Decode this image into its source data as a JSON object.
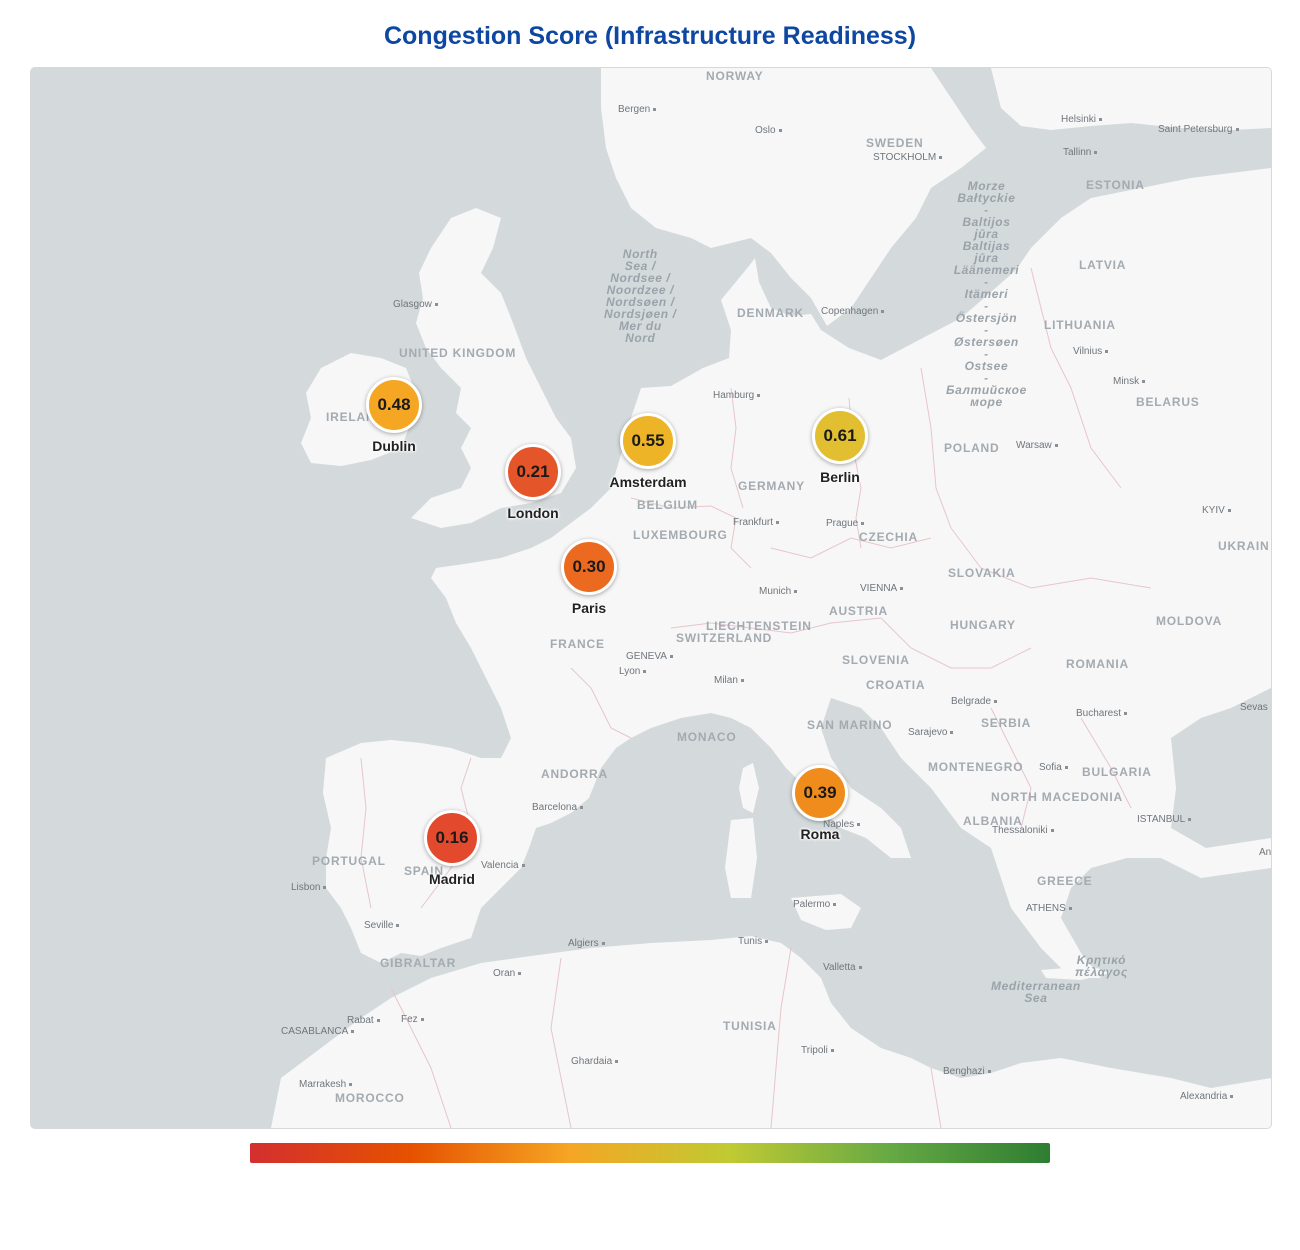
{
  "title": "Congestion Score (Infrastructure Readiness)",
  "colors": {
    "water": "#d4dadc",
    "land": "#f7f7f7",
    "border": "#e8c5cb",
    "title": "#0d47a1",
    "scale": [
      "#d32f2f",
      "#e65100",
      "#f5a623",
      "#c0ca33",
      "#66a944",
      "#2e7d32"
    ]
  },
  "countries": [
    {
      "name": "NORWAY"
    },
    {
      "name": "SWEDEN"
    },
    {
      "name": "ESTONIA"
    },
    {
      "name": "LATVIA"
    },
    {
      "name": "LITHUANIA"
    },
    {
      "name": "DENMARK"
    },
    {
      "name": "UNITED KINGDOM"
    },
    {
      "name": "IRELAND"
    },
    {
      "name": "BELARUS"
    },
    {
      "name": "POLAND"
    },
    {
      "name": "GERMANY"
    },
    {
      "name": "BELGIUM"
    },
    {
      "name": "LUXEMBOURG"
    },
    {
      "name": "CZECHIA"
    },
    {
      "name": "UKRAIN"
    },
    {
      "name": "SLOVAKIA"
    },
    {
      "name": "AUSTRIA"
    },
    {
      "name": "LIECHTENSTEIN"
    },
    {
      "name": "SWITZERLAND"
    },
    {
      "name": "HUNGARY"
    },
    {
      "name": "MOLDOVA"
    },
    {
      "name": "FRANCE"
    },
    {
      "name": "SLOVENIA"
    },
    {
      "name": "CROATIA"
    },
    {
      "name": "ROMANIA"
    },
    {
      "name": "SERBIA"
    },
    {
      "name": "MONACO"
    },
    {
      "name": "SAN MARINO"
    },
    {
      "name": "ANDORRA"
    },
    {
      "name": "MONTENEGRO"
    },
    {
      "name": "BULGARIA"
    },
    {
      "name": "NORTH MACEDONIA"
    },
    {
      "name": "ALBANIA"
    },
    {
      "name": "PORTUGAL"
    },
    {
      "name": "SPAIN"
    },
    {
      "name": "GREECE"
    },
    {
      "name": "GIBRALTAR"
    },
    {
      "name": "TUNISIA"
    },
    {
      "name": "MOROCCO"
    }
  ],
  "cities": [
    {
      "name": "Bergen"
    },
    {
      "name": "Oslo"
    },
    {
      "name": "STOCKHOLM"
    },
    {
      "name": "Helsinki"
    },
    {
      "name": "Saint Petersburg"
    },
    {
      "name": "Tallinn"
    },
    {
      "name": "Glasgow"
    },
    {
      "name": "Copenhagen"
    },
    {
      "name": "Vilnius"
    },
    {
      "name": "Minsk"
    },
    {
      "name": "Hamburg"
    },
    {
      "name": "Warsaw"
    },
    {
      "name": "Frankfurt"
    },
    {
      "name": "Prague"
    },
    {
      "name": "KYIV"
    },
    {
      "name": "Munich"
    },
    {
      "name": "VIENNA"
    },
    {
      "name": "GENEVA"
    },
    {
      "name": "Lyon"
    },
    {
      "name": "Milan"
    },
    {
      "name": "Belgrade"
    },
    {
      "name": "Bucharest"
    },
    {
      "name": "Sevas"
    },
    {
      "name": "Sarajevo"
    },
    {
      "name": "Sofia"
    },
    {
      "name": "Barcelona"
    },
    {
      "name": "Naples"
    },
    {
      "name": "ISTANBUL"
    },
    {
      "name": "Thessaloniki"
    },
    {
      "name": "Anka"
    },
    {
      "name": "Valencia"
    },
    {
      "name": "Lisbon"
    },
    {
      "name": "Seville"
    },
    {
      "name": "Palermo"
    },
    {
      "name": "ATHENS"
    },
    {
      "name": "Algiers"
    },
    {
      "name": "Tunis"
    },
    {
      "name": "Oran"
    },
    {
      "name": "Valletta"
    },
    {
      "name": "Rabat"
    },
    {
      "name": "Fez"
    },
    {
      "name": "CASABLANCA"
    },
    {
      "name": "Ghardaia"
    },
    {
      "name": "Tripoli"
    },
    {
      "name": "Benghazi"
    },
    {
      "name": "Marrakesh"
    },
    {
      "name": "Alexandria"
    }
  ],
  "seas": [
    {
      "name": "North\nSea /\nNordsee /\nNoordzee /\nNordsøen /\nNordsjøen /\nMer du\nNord"
    },
    {
      "name": "Morze\nBałtyckie\n-\nBaltijos\njūra\nBaltijas\njūra\nLäänemeri\n-\nItämeri\n-\nÖstersjön\n-\nØstersøen\n-\nOstsee\n-\nБалтийское\nморе"
    },
    {
      "name": "Mediterranean\nSea"
    },
    {
      "name": "Κρητικό\nπέλαγος"
    }
  ],
  "markers": [
    {
      "city": "Dublin",
      "score": "0.48",
      "color": "#f5a623"
    },
    {
      "city": "London",
      "score": "0.21",
      "color": "#e4552a"
    },
    {
      "city": "Amsterdam",
      "score": "0.55",
      "color": "#eeb427"
    },
    {
      "city": "Berlin",
      "score": "0.61",
      "color": "#e2bf30"
    },
    {
      "city": "Paris",
      "score": "0.30",
      "color": "#ec6a20"
    },
    {
      "city": "Roma",
      "score": "0.39",
      "color": "#f08c1c"
    },
    {
      "city": "Madrid",
      "score": "0.16",
      "color": "#e3492d"
    }
  ]
}
